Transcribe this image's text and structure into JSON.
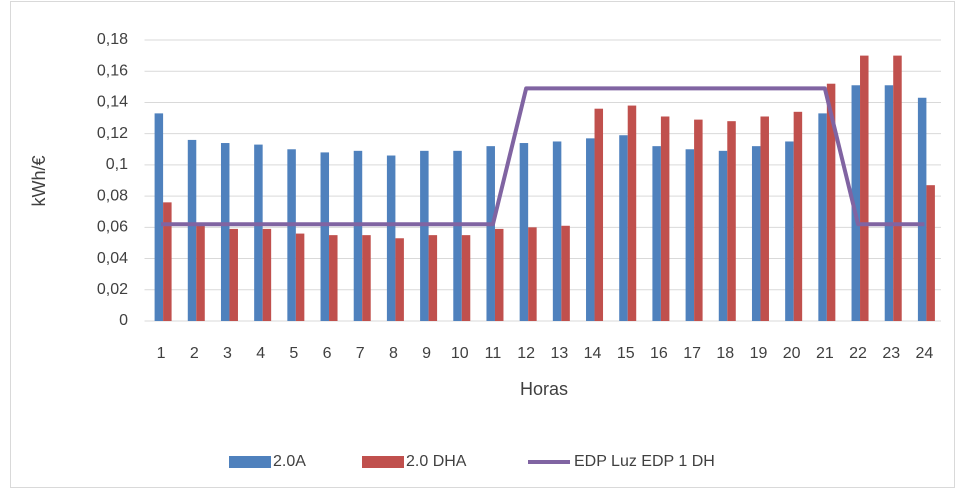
{
  "chart_data": {
    "type": "bar",
    "x_label": "Horas",
    "y_label": "kWh/€",
    "categories": [
      "1",
      "2",
      "3",
      "4",
      "5",
      "6",
      "7",
      "8",
      "9",
      "10",
      "11",
      "12",
      "13",
      "14",
      "15",
      "16",
      "17",
      "18",
      "19",
      "20",
      "21",
      "22",
      "23",
      "24"
    ],
    "series": [
      {
        "name": "2.0A",
        "color": "#4f81bd",
        "type": "bar",
        "values": [
          0.133,
          0.116,
          0.114,
          0.113,
          0.11,
          0.108,
          0.109,
          0.106,
          0.109,
          0.109,
          0.112,
          0.114,
          0.115,
          0.117,
          0.119,
          0.112,
          0.11,
          0.109,
          0.112,
          0.115,
          0.133,
          0.151,
          0.151,
          0.143
        ]
      },
      {
        "name": "2.0 DHA",
        "color": "#c0504d",
        "type": "bar",
        "values": [
          0.076,
          0.061,
          0.059,
          0.059,
          0.056,
          0.055,
          0.055,
          0.053,
          0.055,
          0.055,
          0.059,
          0.06,
          0.061,
          0.136,
          0.138,
          0.131,
          0.129,
          0.128,
          0.131,
          0.134,
          0.152,
          0.17,
          0.17,
          0.087
        ]
      },
      {
        "name": "EDP Luz EDP 1 DH",
        "color": "#8064a2",
        "type": "line",
        "values": [
          0.062,
          0.062,
          0.062,
          0.062,
          0.062,
          0.062,
          0.062,
          0.062,
          0.062,
          0.062,
          0.062,
          0.149,
          0.149,
          0.149,
          0.149,
          0.149,
          0.149,
          0.149,
          0.149,
          0.149,
          0.149,
          0.062,
          0.062,
          0.062
        ]
      }
    ],
    "ylim": [
      0,
      0.18
    ],
    "yticks": [
      0,
      {
        "value": 0.02,
        "label": "0,02"
      },
      {
        "value": 0.04,
        "label": "0,04"
      },
      {
        "value": 0.06,
        "label": "0,06"
      },
      {
        "value": 0.08,
        "label": "0,08"
      },
      {
        "value": 0.1,
        "label": "0,1"
      },
      {
        "value": 0.12,
        "label": "0,12"
      },
      {
        "value": 0.14,
        "label": "0,14"
      },
      {
        "value": 0.16,
        "label": "0,16"
      },
      {
        "value": 0.18,
        "label": "0,18"
      }
    ],
    "grid": true,
    "legend": "bottom"
  }
}
